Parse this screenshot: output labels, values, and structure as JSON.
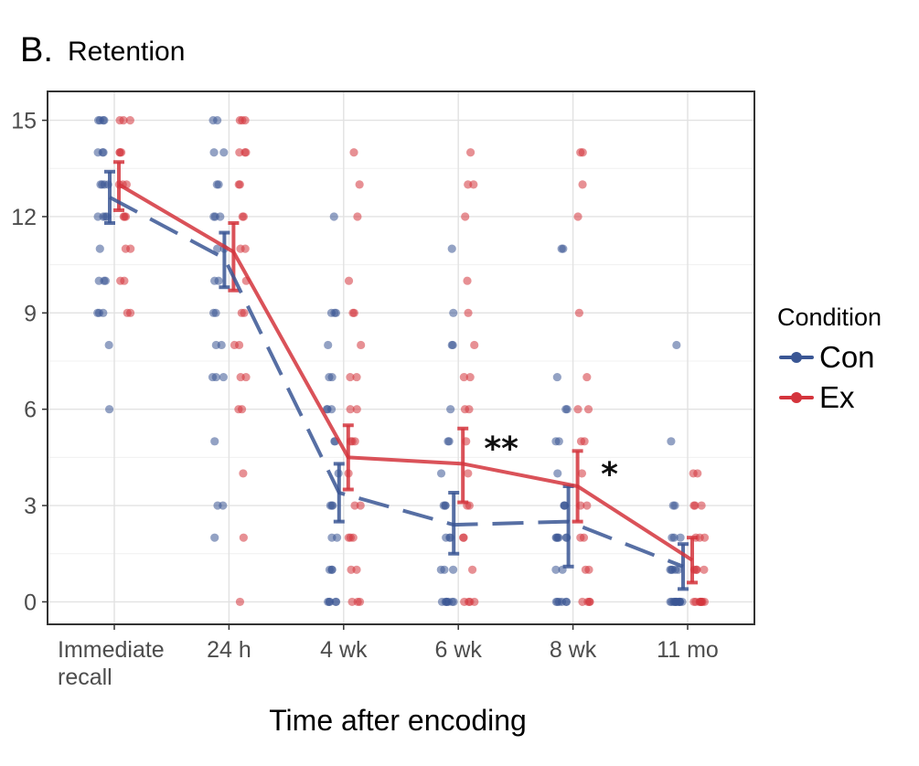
{
  "figure": {
    "panel_letter": "B.",
    "panel_title": "Retention"
  },
  "legend": {
    "title": "Condition",
    "items": [
      {
        "label": "Con",
        "color": "#3a5694"
      },
      {
        "label": "Ex",
        "color": "#d4343c"
      }
    ]
  },
  "chart_data": {
    "type": "line",
    "title": "Retention",
    "xlabel": "Time after encoding",
    "ylabel": "",
    "categories": [
      "Immediate\nrecall",
      "24 h",
      "4 wk",
      "6 wk",
      "8 wk",
      "11 mo"
    ],
    "ylim": [
      -0.7,
      15.9
    ],
    "yticks": [
      0,
      3,
      6,
      9,
      12,
      15
    ],
    "grid": true,
    "legend_position": "right",
    "series": [
      {
        "name": "Con",
        "color": "#3a5694",
        "line_style": "dashed",
        "means": [
          12.6,
          10.7,
          3.4,
          2.4,
          2.5,
          1.1
        ],
        "error": [
          [
            11.8,
            13.4
          ],
          [
            9.8,
            11.5
          ],
          [
            2.5,
            4.3
          ],
          [
            1.5,
            3.4
          ],
          [
            1.1,
            3.6
          ],
          [
            0.4,
            1.8
          ]
        ],
        "points": [
          [
            15,
            15,
            15,
            15,
            14,
            14,
            14,
            13,
            13,
            13,
            13,
            12,
            12,
            12,
            12,
            11,
            10,
            10,
            10,
            9,
            9,
            9,
            8,
            6
          ],
          [
            15,
            15,
            14,
            14,
            13,
            13,
            12,
            12,
            12,
            11,
            11,
            10,
            10,
            9,
            9,
            8,
            8,
            7,
            7,
            7,
            5,
            3,
            3,
            2
          ],
          [
            12,
            9,
            9,
            9,
            8,
            7,
            7,
            6,
            6,
            6,
            5,
            5,
            4,
            3,
            3,
            3,
            2,
            2,
            1,
            1,
            1,
            0,
            0,
            0,
            0,
            0
          ],
          [
            11,
            9,
            8,
            8,
            6,
            5,
            5,
            4,
            3,
            3,
            3,
            2,
            2,
            2,
            1,
            1,
            1,
            0,
            0,
            0,
            0,
            0,
            0,
            0
          ],
          [
            11,
            11,
            7,
            6,
            6,
            5,
            5,
            4,
            3,
            3,
            3,
            2,
            2,
            2,
            2,
            2,
            2,
            1,
            1,
            0,
            0,
            0,
            0,
            0,
            0
          ],
          [
            8,
            5,
            3,
            3,
            2,
            2,
            2,
            1,
            1,
            1,
            1,
            1,
            0,
            0,
            0,
            0,
            0,
            0,
            0,
            0,
            0,
            0,
            0,
            0
          ]
        ]
      },
      {
        "name": "Ex",
        "color": "#d4343c",
        "line_style": "solid",
        "means": [
          13.0,
          10.9,
          4.5,
          4.3,
          3.6,
          1.3
        ],
        "error": [
          [
            12.2,
            13.7
          ],
          [
            9.7,
            11.8
          ],
          [
            3.5,
            5.5
          ],
          [
            3.1,
            5.4
          ],
          [
            2.5,
            4.7
          ],
          [
            0.6,
            2.0
          ]
        ],
        "points": [
          [
            15,
            15,
            15,
            14,
            14,
            14,
            13,
            13,
            13,
            12,
            12,
            12,
            11,
            11,
            10,
            10,
            9,
            9
          ],
          [
            15,
            15,
            15,
            14,
            14,
            14,
            13,
            13,
            12,
            12,
            11,
            11,
            10,
            9,
            9,
            8,
            8,
            7,
            7,
            6,
            6,
            4,
            2,
            0
          ],
          [
            14,
            13,
            12,
            10,
            9,
            9,
            8,
            7,
            7,
            6,
            6,
            5,
            5,
            5,
            4,
            3,
            3,
            2,
            2,
            2,
            1,
            1,
            0,
            0,
            0
          ],
          [
            14,
            13,
            13,
            12,
            10,
            9,
            8,
            7,
            7,
            6,
            6,
            5,
            4,
            3,
            3,
            2,
            2,
            1,
            0,
            0,
            0,
            0
          ],
          [
            14,
            14,
            13,
            12,
            9,
            7,
            6,
            6,
            5,
            5,
            4,
            3,
            3,
            2,
            2,
            1,
            1,
            0,
            0,
            0,
            0
          ],
          [
            4,
            4,
            3,
            3,
            3,
            2,
            2,
            2,
            1,
            1,
            1,
            1,
            0,
            0,
            0,
            0,
            0,
            0,
            0,
            0
          ]
        ]
      }
    ],
    "annotations": [
      {
        "text": "**",
        "category": "6 wk",
        "y": 5.0
      },
      {
        "text": "*",
        "category": "8 wk",
        "y": 4.2
      }
    ]
  }
}
